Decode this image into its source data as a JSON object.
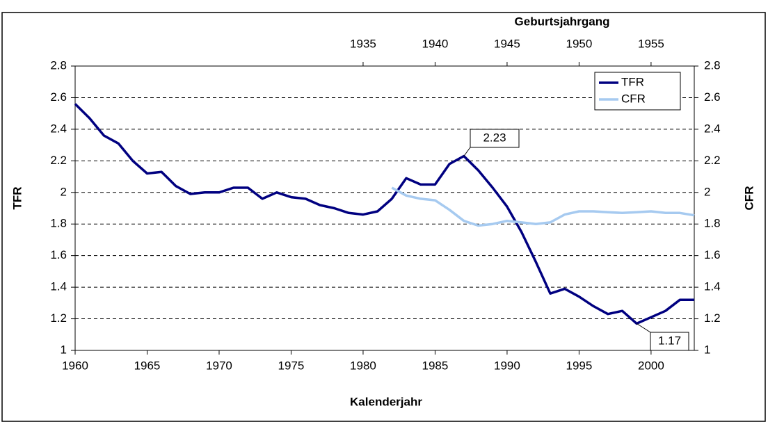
{
  "chart_data": {
    "type": "line",
    "x_label": "Kalenderjahr",
    "x2_label": "Geburtsjahrgang",
    "y_label": "TFR",
    "y2_label": "CFR",
    "xlim": [
      1960,
      2003
    ],
    "xticks": [
      1960,
      1965,
      1970,
      1975,
      1980,
      1985,
      1990,
      1995,
      2000
    ],
    "x2lim": [
      1915,
      1958
    ],
    "x2ticks": [
      1935,
      1940,
      1945,
      1950,
      1955
    ],
    "ylim": [
      1,
      2.8
    ],
    "yticks": [
      1,
      1.2,
      1.4,
      1.6,
      1.8,
      2,
      2.2,
      2.4,
      2.6,
      2.8
    ],
    "y2lim": [
      1,
      2.8
    ],
    "y2ticks": [
      1,
      1.2,
      1.4,
      1.6,
      1.8,
      2,
      2.2,
      2.4,
      2.6,
      2.8
    ],
    "grid": true,
    "legend": "top-right",
    "series": [
      {
        "name": "TFR",
        "color": "#000080",
        "x": [
          1960,
          1961,
          1962,
          1963,
          1964,
          1965,
          1966,
          1967,
          1968,
          1969,
          1970,
          1971,
          1972,
          1973,
          1974,
          1975,
          1976,
          1977,
          1978,
          1979,
          1980,
          1981,
          1982,
          1983,
          1984,
          1985,
          1986,
          1987,
          1988,
          1989,
          1990,
          1991,
          1992,
          1993,
          1994,
          1995,
          1996,
          1997,
          1998,
          1999,
          2000,
          2001,
          2002,
          2003
        ],
        "values": [
          2.56,
          2.47,
          2.36,
          2.31,
          2.2,
          2.12,
          2.13,
          2.04,
          1.99,
          2,
          2,
          2.03,
          2.03,
          1.96,
          2,
          1.97,
          1.96,
          1.92,
          1.9,
          1.87,
          1.86,
          1.88,
          1.96,
          2.09,
          2.05,
          2.05,
          2.18,
          2.23,
          2.14,
          2.03,
          1.91,
          1.75,
          1.56,
          1.36,
          1.39,
          1.34,
          1.28,
          1.23,
          1.25,
          1.17,
          1.21,
          1.25,
          1.32,
          1.32
        ]
      },
      {
        "name": "CFR",
        "color": "#a6caf0",
        "axis": "y2",
        "x_axis": "x2",
        "x": [
          1937,
          1938,
          1939,
          1940,
          1941,
          1942,
          1943,
          1944,
          1945,
          1946,
          1947,
          1948,
          1949,
          1950,
          1951,
          1952,
          1953,
          1954,
          1955,
          1956,
          1957,
          1958
        ],
        "values": [
          2.03,
          1.98,
          1.96,
          1.95,
          1.89,
          1.82,
          1.79,
          1.8,
          1.82,
          1.81,
          1.8,
          1.81,
          1.86,
          1.88,
          1.88,
          1.875,
          1.87,
          1.875,
          1.88,
          1.87,
          1.87,
          1.855
        ]
      }
    ]
  }
}
